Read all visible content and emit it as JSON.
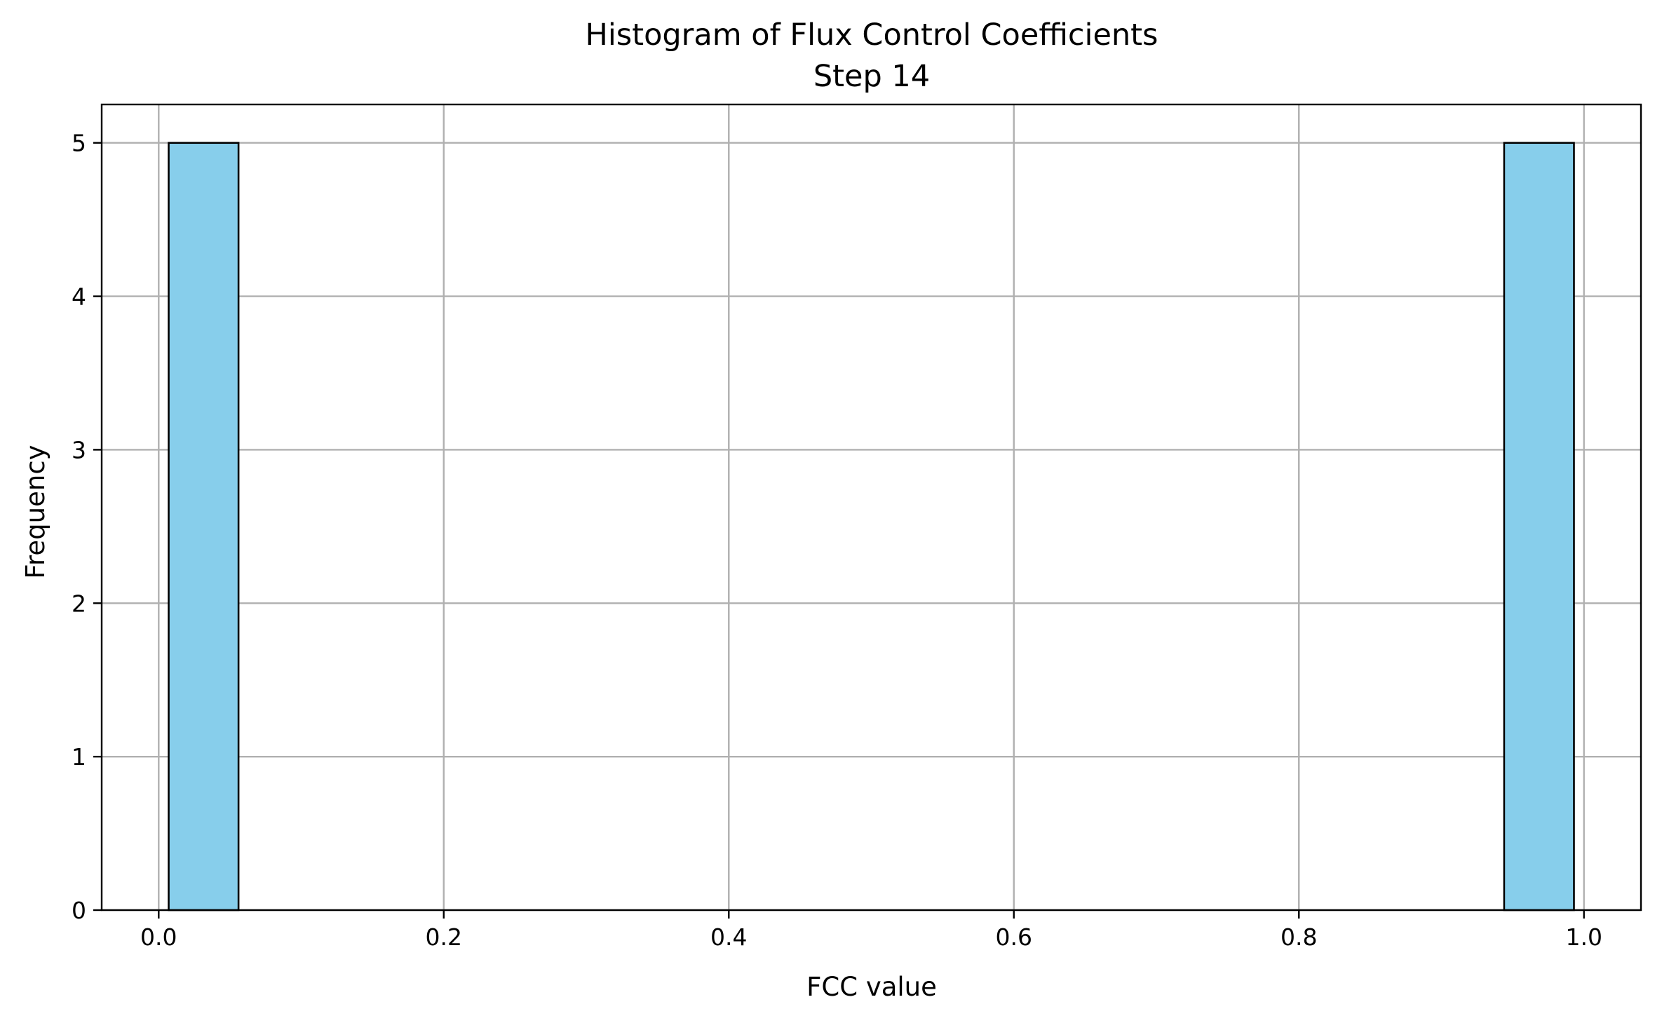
{
  "chart_data": {
    "type": "histogram",
    "title": "Histogram of Flux Control Coefficients",
    "subtitle": "Step 14",
    "xlabel": "FCC value",
    "ylabel": "Frequency",
    "xlim": [
      -0.04,
      1.04
    ],
    "ylim": [
      0,
      5.25
    ],
    "x_ticks": [
      0.0,
      0.2,
      0.4,
      0.6,
      0.8,
      1.0
    ],
    "x_tick_labels": [
      "0.0",
      "0.2",
      "0.4",
      "0.6",
      "0.8",
      "1.0"
    ],
    "y_ticks": [
      0,
      1,
      2,
      3,
      4,
      5
    ],
    "y_tick_labels": [
      "0",
      "1",
      "2",
      "3",
      "4",
      "5"
    ],
    "grid": true,
    "bars": [
      {
        "x0": 0.007,
        "x1": 0.056,
        "count": 5
      },
      {
        "x0": 0.944,
        "x1": 0.993,
        "count": 5
      }
    ],
    "bar_color": "#87ceeb",
    "edge_color": "#000000",
    "grid_color": "#b0b0b0"
  }
}
